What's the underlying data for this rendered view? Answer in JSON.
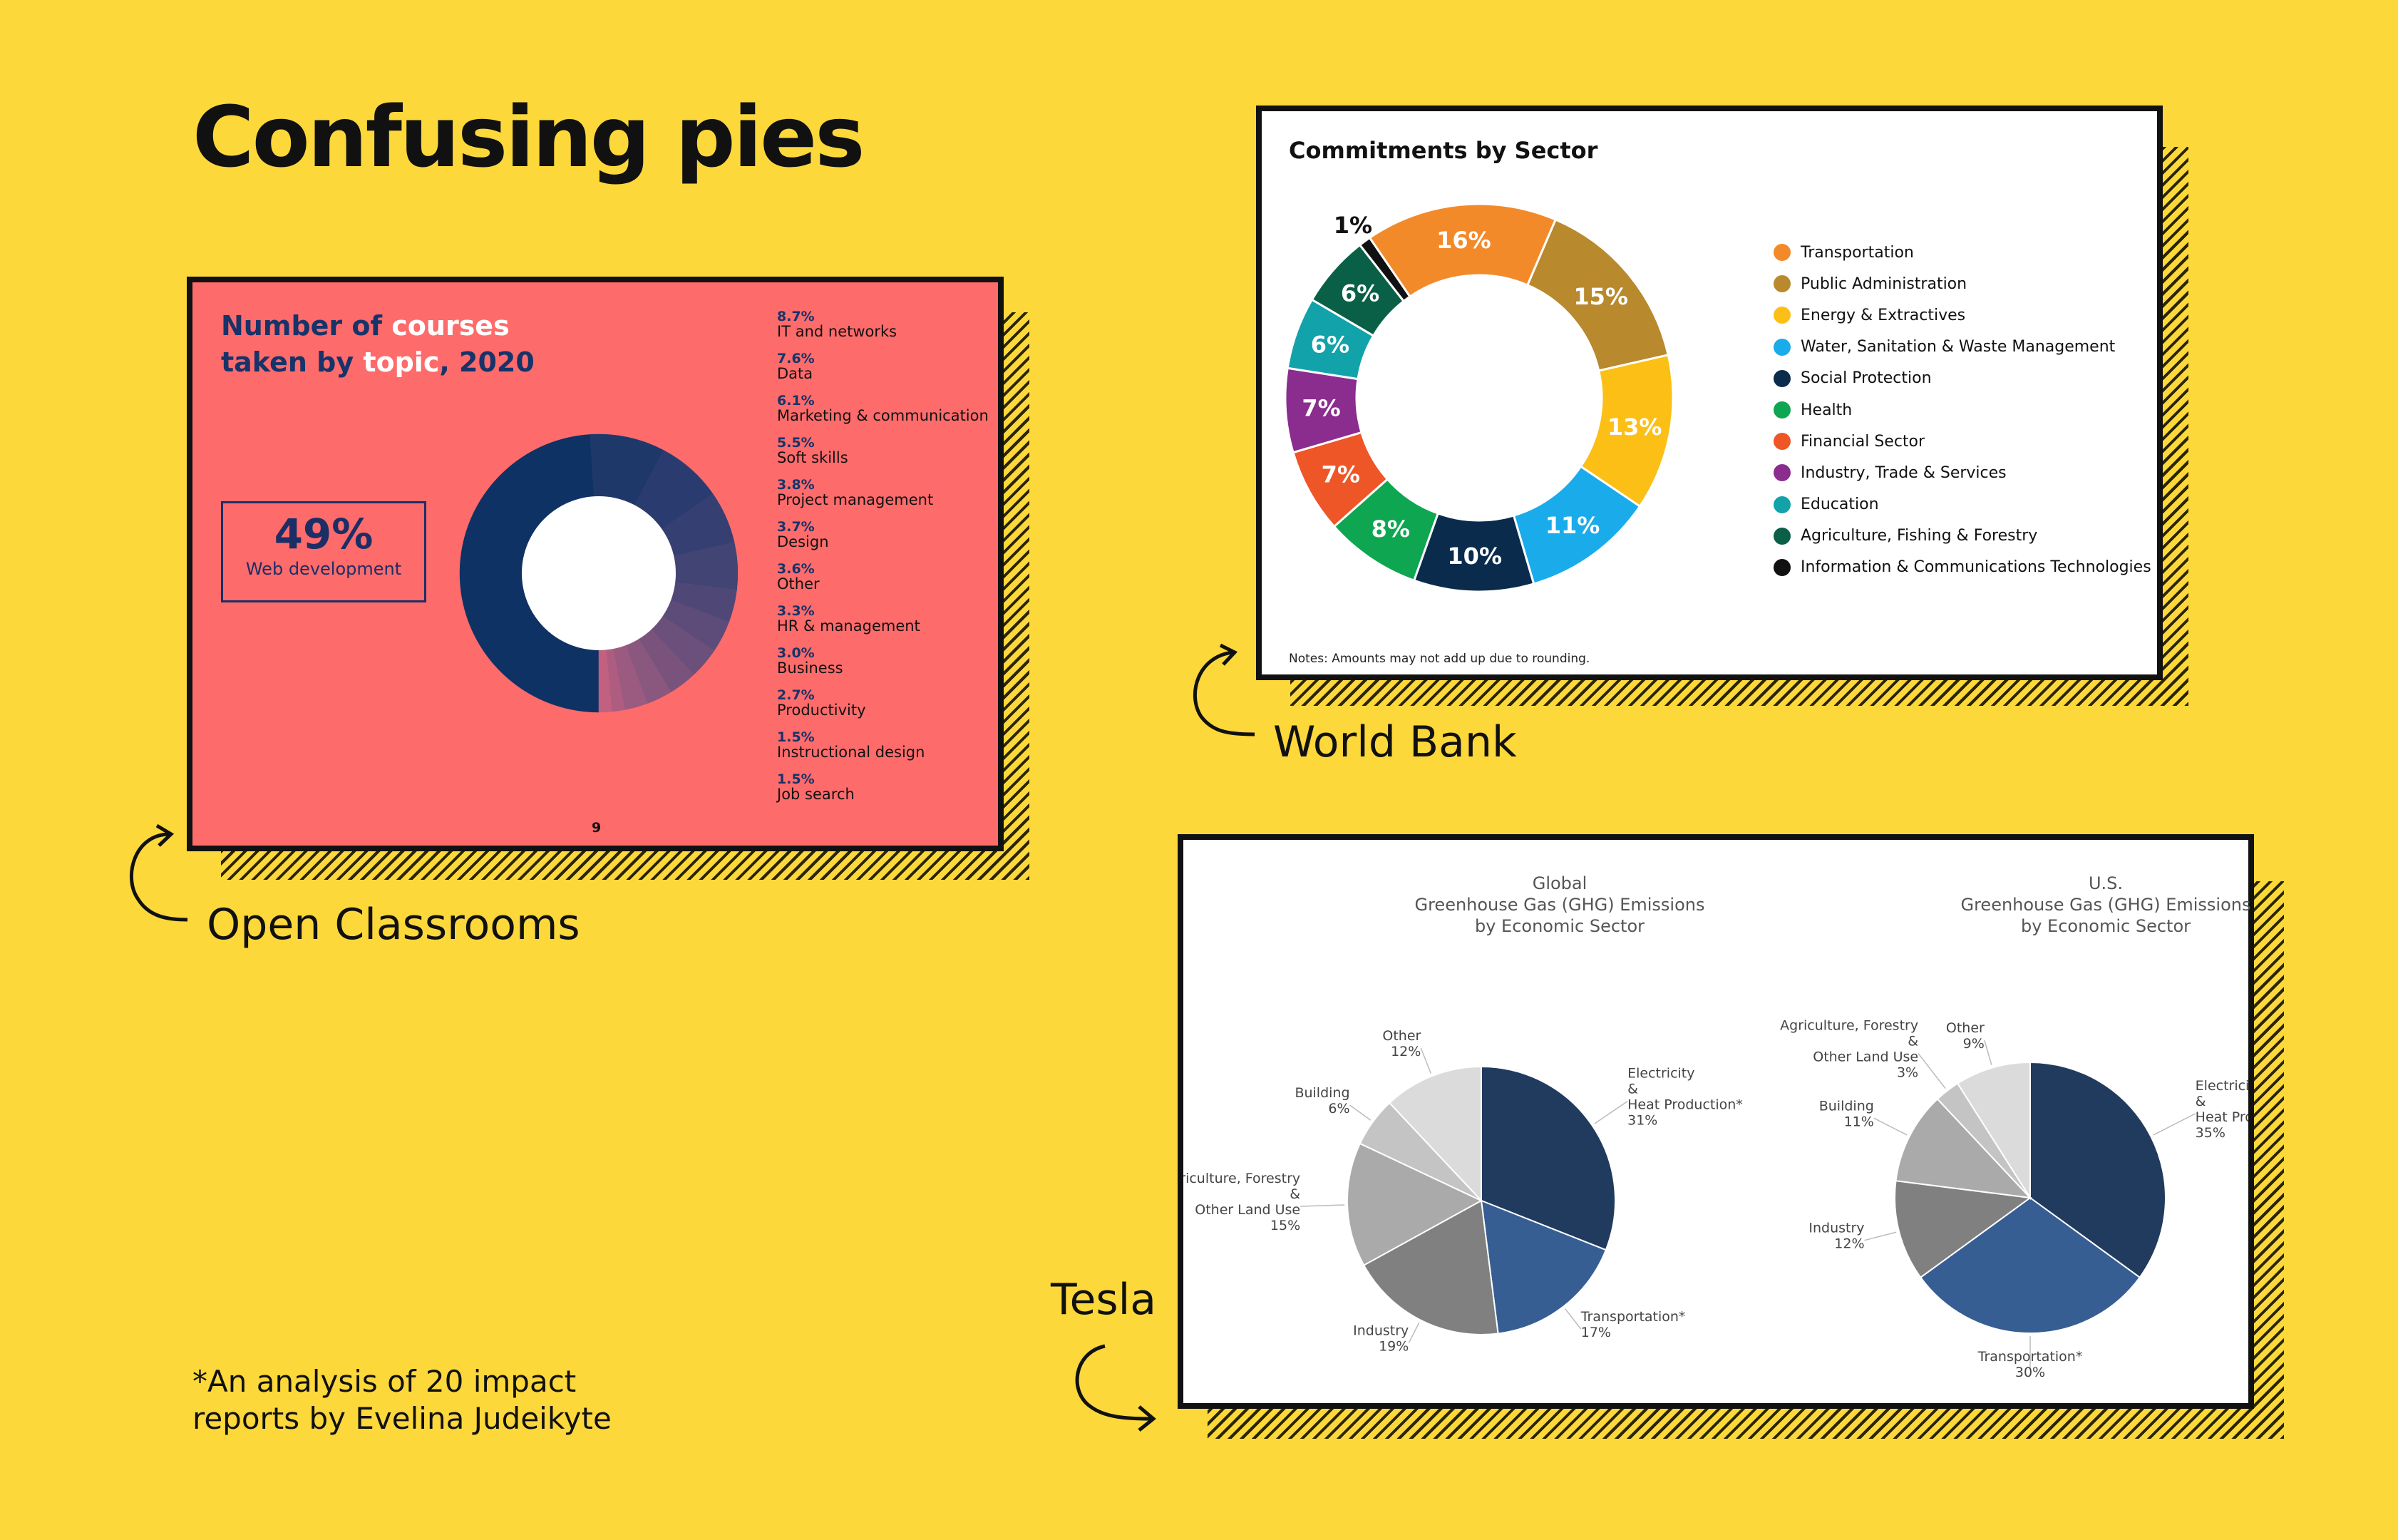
{
  "page": {
    "title": "Confusing pies",
    "footnote_line1": "*An analysis of 20 impact",
    "footnote_line2": "reports by Evelina Judeikyte",
    "captions": {
      "open_classrooms": "Open Classrooms",
      "world_bank": "World Bank",
      "tesla": "Tesla"
    }
  },
  "colors": {
    "background": "#FDD83B",
    "oc_panel": "#FD6B6B",
    "oc_navy": "#0E3264"
  },
  "open_classrooms": {
    "title_part1": "Number of ",
    "title_part2": "courses",
    "title_part3": "taken by ",
    "title_part4": "topic",
    "title_part5": ", 2020",
    "callout_value": "49%",
    "callout_label": "Web development",
    "page_number": "9"
  },
  "world_bank": {
    "title": "Commitments by Sector",
    "note": "Notes: Amounts may not add up due to rounding."
  },
  "tesla": {
    "global_title": [
      "Global",
      "Greenhouse Gas (GHG) Emissions",
      "by Economic Sector"
    ],
    "us_title": [
      "U.S.",
      "Greenhouse Gas (GHG) Emissions",
      "by Economic Sector"
    ]
  },
  "chart_data": [
    {
      "type": "pie",
      "variant": "donut",
      "title": "Number of courses taken by topic, 2020",
      "categories": [
        "Web development",
        "IT and networks",
        "Data",
        "Marketing & communication",
        "Soft skills",
        "Project management",
        "Design",
        "Other",
        "HR & management",
        "Business",
        "Productivity",
        "Instructional design",
        "Job search"
      ],
      "values": [
        49,
        8.7,
        7.6,
        6.1,
        5.5,
        3.8,
        3.7,
        3.6,
        3.3,
        3.0,
        2.7,
        1.5,
        1.5
      ],
      "labels": [
        "49%",
        "8.7%",
        "7.6%",
        "6.1%",
        "5.5%",
        "3.8%",
        "3.7%",
        "3.6%",
        "3.3%",
        "3.0%",
        "2.7%",
        "1.5%",
        "1.5%"
      ],
      "colors": [
        "#0E3264",
        "#1E386A",
        "#2A3C6F",
        "#363F72",
        "#424474",
        "#4F4877",
        "#5D4C79",
        "#6B507B",
        "#7A537D",
        "#8A577F",
        "#9B5A80",
        "#AE5D80",
        "#C16080"
      ]
    },
    {
      "type": "pie",
      "variant": "donut",
      "title": "Commitments by Sector",
      "categories": [
        "Transportation",
        "Public Administration",
        "Energy & Extractives",
        "Water, Sanitation & Waste Management",
        "Social Protection",
        "Health",
        "Financial Sector",
        "Industry, Trade & Services",
        "Education",
        "Agriculture, Fishing & Forestry",
        "Information & Communications Technologies"
      ],
      "values": [
        16,
        15,
        13,
        11,
        10,
        8,
        7,
        7,
        6,
        6,
        1
      ],
      "labels": [
        "16%",
        "15%",
        "13%",
        "11%",
        "10%",
        "8%",
        "7%",
        "7%",
        "6%",
        "6%",
        "1%"
      ],
      "colors": [
        "#F38A2A",
        "#B8892D",
        "#FBBF16",
        "#1AABEB",
        "#0A2B4C",
        "#0EA650",
        "#EE5527",
        "#8B2C8F",
        "#12A2AA",
        "#0A6046",
        "#111111"
      ],
      "legend": "right"
    },
    {
      "type": "pie",
      "title": "Global Greenhouse Gas (GHG) Emissions by Economic Sector",
      "categories": [
        "Electricity & Heat Production*",
        "Transportation*",
        "Industry",
        "Agriculture, Forestry & Other Land Use",
        "Building",
        "Other"
      ],
      "values": [
        31,
        17,
        19,
        15,
        6,
        12
      ],
      "labels": [
        "31%",
        "17%",
        "19%",
        "15%",
        "6%",
        "12%"
      ],
      "colors": [
        "#213B5E",
        "#365E93",
        "#808080",
        "#AAAAAA",
        "#C4C4C4",
        "#DBDBDB"
      ]
    },
    {
      "type": "pie",
      "title": "U.S. Greenhouse Gas (GHG) Emissions by Economic Sector",
      "categories": [
        "Electricity & Heat Production*",
        "Transportation*",
        "Industry",
        "Building",
        "Agriculture, Forestry & Other Land Use",
        "Other"
      ],
      "values": [
        35,
        30,
        12,
        11,
        3,
        9
      ],
      "labels": [
        "35%",
        "30%",
        "12%",
        "11%",
        "3%",
        "9%"
      ],
      "colors": [
        "#213B5E",
        "#365E93",
        "#808080",
        "#AAAAAA",
        "#C4C4C4",
        "#DBDBDB"
      ]
    }
  ]
}
